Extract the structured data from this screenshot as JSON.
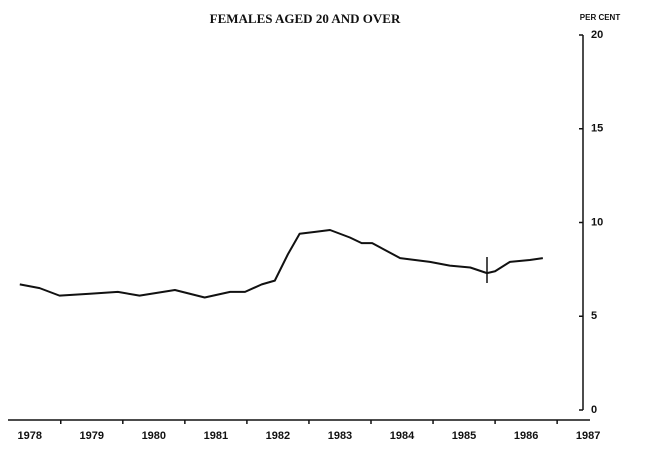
{
  "chart_data": {
    "type": "line",
    "title": "FEMALES AGED 20 AND OVER",
    "y_axis_label": "PER CENT",
    "x": [
      1977.84,
      1978.16,
      1978.48,
      1978.97,
      1979.42,
      1979.77,
      1980.34,
      1980.82,
      1981.23,
      1981.47,
      1981.74,
      1981.95,
      1982.16,
      1982.35,
      1982.6,
      1982.84,
      1983.16,
      1983.35,
      1983.52,
      1983.97,
      1984.45,
      1984.77,
      1985.1,
      1985.37,
      1985.5,
      1985.74,
      1986.06,
      1986.27
    ],
    "series": [
      {
        "name": "Females aged 20 and over",
        "color": "#111111",
        "values": [
          6.7,
          6.5,
          6.1,
          6.2,
          6.3,
          6.1,
          6.4,
          6.0,
          6.3,
          6.3,
          6.7,
          6.9,
          8.3,
          9.4,
          9.5,
          9.6,
          9.2,
          8.9,
          8.9,
          8.1,
          7.9,
          7.7,
          7.6,
          7.3,
          7.4,
          7.9,
          8.0,
          8.1
        ]
      }
    ],
    "xlim": [
      1977.65,
      1987.03
    ],
    "xticks": [
      1978,
      1979,
      1980,
      1981,
      1982,
      1983,
      1984,
      1985,
      1986,
      1987
    ],
    "ylim": [
      0,
      20
    ],
    "yticks": [
      0,
      5,
      10,
      15,
      20
    ],
    "grid": false
  }
}
